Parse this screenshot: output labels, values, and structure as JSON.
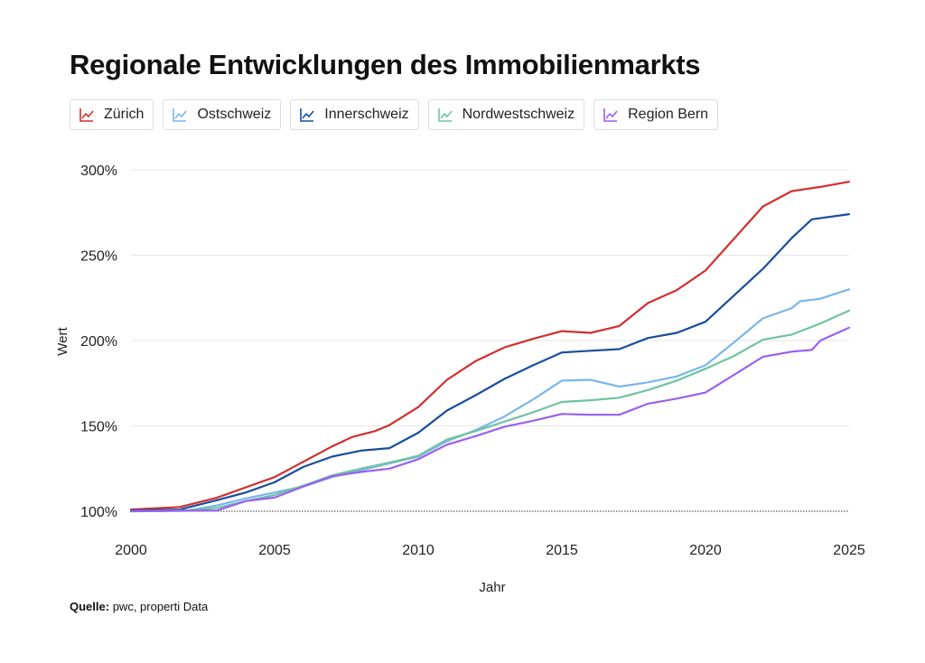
{
  "title": "Regionale Entwicklungen des Immobilienmarkts",
  "source": {
    "label": "Quelle:",
    "text": "pwc, properti Data"
  },
  "chart_data": {
    "type": "line",
    "title": "Regionale Entwicklungen des Immobilienmarkts",
    "xlabel": "Jahr",
    "ylabel": "Wert",
    "xlim": [
      2000,
      2025
    ],
    "ylim": [
      100,
      300
    ],
    "xticks": [
      "2000",
      "2005",
      "2010",
      "2015",
      "2020",
      "2025"
    ],
    "yticks": [
      "100%",
      "150%",
      "200%",
      "250%",
      "300%"
    ],
    "grid": "horizontal",
    "legend_position": "top",
    "series": [
      {
        "name": "Zürich",
        "color": "#d12f2f",
        "points": [
          [
            2000,
            101
          ],
          [
            2001.7,
            102.5
          ],
          [
            2003,
            108
          ],
          [
            2004,
            114
          ],
          [
            2005,
            120
          ],
          [
            2006,
            129
          ],
          [
            2007,
            138
          ],
          [
            2007.7,
            143.5
          ],
          [
            2008.5,
            147
          ],
          [
            2009,
            150.5
          ],
          [
            2010,
            161
          ],
          [
            2011,
            177
          ],
          [
            2012,
            188
          ],
          [
            2013,
            196
          ],
          [
            2014,
            201
          ],
          [
            2015,
            205.5
          ],
          [
            2016,
            204.5
          ],
          [
            2017,
            208.5
          ],
          [
            2018,
            222
          ],
          [
            2019,
            229.5
          ],
          [
            2020,
            241
          ],
          [
            2022,
            278.5
          ],
          [
            2023,
            287.5
          ],
          [
            2024,
            290
          ],
          [
            2025,
            293
          ]
        ]
      },
      {
        "name": "Ostschweiz",
        "color": "#7ab6ec",
        "points": [
          [
            2000,
            100
          ],
          [
            2002,
            100.5
          ],
          [
            2003,
            103.5
          ],
          [
            2004,
            107.5
          ],
          [
            2005,
            111
          ],
          [
            2006,
            114.5
          ],
          [
            2007,
            120
          ],
          [
            2008,
            124
          ],
          [
            2009,
            128
          ],
          [
            2010,
            132
          ],
          [
            2011,
            141
          ],
          [
            2012,
            147.5
          ],
          [
            2013,
            155.5
          ],
          [
            2014,
            165.5
          ],
          [
            2015,
            176.5
          ],
          [
            2016,
            177
          ],
          [
            2017,
            173
          ],
          [
            2018,
            175.5
          ],
          [
            2019,
            179
          ],
          [
            2020,
            185.5
          ],
          [
            2021,
            199
          ],
          [
            2022,
            213
          ],
          [
            2023,
            219
          ],
          [
            2023.3,
            223
          ],
          [
            2024,
            224.5
          ],
          [
            2025,
            230
          ]
        ]
      },
      {
        "name": "Innerschweiz",
        "color": "#1a4e9c",
        "points": [
          [
            2000,
            100.5
          ],
          [
            2001.7,
            101
          ],
          [
            2003,
            106.5
          ],
          [
            2004,
            111
          ],
          [
            2005,
            117
          ],
          [
            2006,
            126
          ],
          [
            2007,
            132
          ],
          [
            2008,
            135.5
          ],
          [
            2009,
            137
          ],
          [
            2010,
            146
          ],
          [
            2011,
            159
          ],
          [
            2012,
            168
          ],
          [
            2013,
            177.5
          ],
          [
            2014,
            185.5
          ],
          [
            2015,
            193
          ],
          [
            2016,
            194
          ],
          [
            2017,
            195
          ],
          [
            2018,
            201.5
          ],
          [
            2019,
            204.5
          ],
          [
            2020,
            211
          ],
          [
            2022,
            242
          ],
          [
            2023,
            260
          ],
          [
            2023.7,
            271
          ],
          [
            2025,
            274
          ]
        ]
      },
      {
        "name": "Nordwestschweiz",
        "color": "#6ec4a0",
        "points": [
          [
            2000,
            100
          ],
          [
            2002,
            100.5
          ],
          [
            2003,
            102
          ],
          [
            2004,
            106
          ],
          [
            2005,
            109.5
          ],
          [
            2006,
            115
          ],
          [
            2007,
            121
          ],
          [
            2008,
            125
          ],
          [
            2009,
            128.5
          ],
          [
            2010,
            132.5
          ],
          [
            2011,
            142
          ],
          [
            2012,
            147
          ],
          [
            2013,
            152.5
          ],
          [
            2014,
            158
          ],
          [
            2015,
            164
          ],
          [
            2016,
            165
          ],
          [
            2017,
            166.5
          ],
          [
            2018,
            171
          ],
          [
            2019,
            176.5
          ],
          [
            2020,
            183.5
          ],
          [
            2021,
            191
          ],
          [
            2022,
            200.5
          ],
          [
            2023,
            203.5
          ],
          [
            2024,
            210
          ],
          [
            2025,
            217.5
          ]
        ]
      },
      {
        "name": "Region Bern",
        "color": "#9b5ff2",
        "points": [
          [
            2000,
            100
          ],
          [
            2003,
            100.5
          ],
          [
            2004,
            106
          ],
          [
            2005,
            108
          ],
          [
            2006,
            114.5
          ],
          [
            2007,
            120.5
          ],
          [
            2008,
            123
          ],
          [
            2009,
            125
          ],
          [
            2010,
            130.5
          ],
          [
            2011,
            139
          ],
          [
            2012,
            144
          ],
          [
            2013,
            149.5
          ],
          [
            2014,
            153
          ],
          [
            2015,
            157
          ],
          [
            2016,
            156.5
          ],
          [
            2017,
            156.5
          ],
          [
            2018,
            163
          ],
          [
            2019,
            166
          ],
          [
            2020,
            169.5
          ],
          [
            2021,
            180
          ],
          [
            2022,
            190.5
          ],
          [
            2023,
            193.5
          ],
          [
            2023.7,
            194.5
          ],
          [
            2024,
            200
          ],
          [
            2025,
            207.5
          ]
        ]
      }
    ]
  }
}
